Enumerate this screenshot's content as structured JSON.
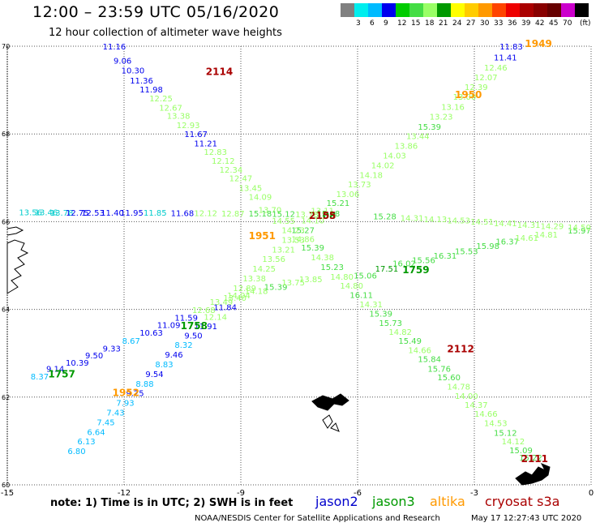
{
  "header": {
    "title": "12:00 – 23:59 UTC 05/16/2020",
    "subtitle": "12 hour collection of altimeter wave heights"
  },
  "colorbar": {
    "unit": "(ft)",
    "colors": [
      "#808080",
      "#00eeee",
      "#00bbff",
      "#0000ee",
      "#00cc00",
      "#44dd44",
      "#99ff66",
      "#009900",
      "#ffff00",
      "#ffcc00",
      "#ff9900",
      "#ff4400",
      "#ee0000",
      "#aa0000",
      "#880000",
      "#660000",
      "#cc00cc",
      "#000000"
    ],
    "labels": [
      "3",
      "6",
      "9",
      "12",
      "15",
      "18",
      "21",
      "24",
      "27",
      "30",
      "33",
      "36",
      "39",
      "42",
      "45",
      "70"
    ]
  },
  "axes": {
    "x_ticks": [
      "-15",
      "-12",
      "-9",
      "-6",
      "-3",
      "0"
    ],
    "y_ticks": [
      "70",
      "68",
      "66",
      "64",
      "62",
      "60"
    ],
    "x_range": [
      -15,
      0
    ],
    "y_range": [
      60,
      70
    ]
  },
  "satellites": {
    "jason2": {
      "name": "jason2",
      "color": "#0000cc"
    },
    "jason3": {
      "name": "jason3",
      "color": "#009900"
    },
    "altika": {
      "name": "altika",
      "color": "#ff9900"
    },
    "cryosat": {
      "name": "cryosat s3a",
      "color": "#aa0000"
    }
  },
  "tracks": [
    {
      "id": "t2114",
      "time": "2114",
      "time_color": "#aa0000",
      "time_at": [
        -9.9,
        69.34
      ],
      "points": [
        [
          -12.55,
          69.93,
          "11.16",
          "#0000ee"
        ],
        [
          -12.27,
          69.6,
          "9.06",
          "#0000ee"
        ],
        [
          -12.07,
          69.38,
          "10.30",
          "#0000ee"
        ],
        [
          -11.85,
          69.15,
          "11.36",
          "#0000ee"
        ],
        [
          -11.6,
          68.95,
          "11.98",
          "#0000ee"
        ],
        [
          -11.35,
          68.74,
          "12.25",
          "#99ff66"
        ],
        [
          -11.1,
          68.53,
          "12.67",
          "#99ff66"
        ],
        [
          -10.9,
          68.35,
          "13.38",
          "#99ff66"
        ],
        [
          -10.65,
          68.13,
          "12.93",
          "#99ff66"
        ],
        [
          -10.45,
          67.93,
          "11.67",
          "#0000ee"
        ],
        [
          -10.2,
          67.72,
          "11.21",
          "#0000ee"
        ],
        [
          -9.95,
          67.52,
          "12.83",
          "#99ff66"
        ],
        [
          -9.75,
          67.32,
          "12.12",
          "#99ff66"
        ],
        [
          -9.55,
          67.12,
          "12.34",
          "#99ff66"
        ],
        [
          -9.3,
          66.92,
          "12.47",
          "#99ff66"
        ],
        [
          -9.05,
          66.7,
          "13.45",
          "#99ff66"
        ],
        [
          -8.8,
          66.5,
          "14.09",
          "#99ff66"
        ],
        [
          -8.55,
          66.2,
          "13.70",
          "#99ff66"
        ],
        [
          -8.2,
          65.95,
          "14.55",
          "#99ff66"
        ],
        [
          -7.95,
          65.74,
          "14.23",
          "#99ff66"
        ],
        [
          -7.7,
          65.54,
          "14.86",
          "#99ff66"
        ],
        [
          -7.45,
          65.34,
          "15.39",
          "#44dd44"
        ],
        [
          -7.2,
          65.12,
          "14.38",
          "#99ff66"
        ],
        [
          -6.95,
          64.9,
          "15.23",
          "#44dd44"
        ],
        [
          -6.7,
          64.68,
          "14.80",
          "#99ff66"
        ],
        [
          -6.45,
          64.47,
          "14.80",
          "#99ff66"
        ],
        [
          -6.2,
          64.26,
          "16.11",
          "#44dd44"
        ],
        [
          -5.95,
          64.05,
          "14.31",
          "#99ff66"
        ],
        [
          -5.7,
          63.84,
          "15.39",
          "#44dd44"
        ],
        [
          -5.45,
          63.62,
          "15.73",
          "#44dd44"
        ],
        [
          -5.2,
          63.42,
          "14.82",
          "#99ff66"
        ],
        [
          -4.95,
          63.22,
          "15.49",
          "#44dd44"
        ],
        [
          -4.7,
          63.0,
          "14.66",
          "#99ff66"
        ],
        [
          -4.45,
          62.8,
          "15.84",
          "#44dd44"
        ],
        [
          -4.2,
          62.58,
          "15.76",
          "#44dd44"
        ],
        [
          -3.95,
          62.38,
          "15.60",
          "#44dd44"
        ],
        [
          -3.7,
          62.17,
          "14.78",
          "#99ff66"
        ],
        [
          -3.5,
          61.96,
          "14.00",
          "#99ff66"
        ],
        [
          -3.25,
          61.76,
          "14.37",
          "#99ff66"
        ],
        [
          -3.0,
          61.55,
          "14.66",
          "#99ff66"
        ],
        [
          -2.75,
          61.34,
          "14.53",
          "#99ff66"
        ],
        [
          -2.5,
          61.12,
          "15.12",
          "#44dd44"
        ],
        [
          -2.3,
          60.92,
          "14.12",
          "#99ff66"
        ],
        [
          -2.1,
          60.72,
          "15.09",
          "#44dd44"
        ],
        [
          -1.85,
          60.55,
          "15.22",
          "#44dd44"
        ]
      ]
    },
    {
      "id": "t1950",
      "time": "1950",
      "time_color": "#ff9900",
      "time_at": [
        -3.5,
        68.82
      ],
      "points": [
        [
          -2.35,
          69.93,
          "11.83",
          "#0000ee"
        ],
        [
          -2.5,
          69.68,
          "11.41",
          "#0000ee"
        ],
        [
          -2.75,
          69.45,
          "12.46",
          "#99ff66"
        ],
        [
          -3.0,
          69.22,
          "12.07",
          "#99ff66"
        ],
        [
          -3.25,
          69.0,
          "12.39",
          "#99ff66"
        ],
        [
          -3.55,
          68.78,
          "13.00",
          "#99ff66"
        ],
        [
          -3.85,
          68.55,
          "13.16",
          "#99ff66"
        ],
        [
          -4.15,
          68.33,
          "13.23",
          "#99ff66"
        ],
        [
          -4.45,
          68.1,
          "15.39",
          "#44dd44"
        ],
        [
          -4.75,
          67.88,
          "13.44",
          "#99ff66"
        ],
        [
          -5.05,
          67.66,
          "13.86",
          "#99ff66"
        ],
        [
          -5.35,
          67.44,
          "14.03",
          "#99ff66"
        ],
        [
          -5.65,
          67.22,
          "14.02",
          "#99ff66"
        ],
        [
          -5.95,
          67.0,
          "14.18",
          "#99ff66"
        ],
        [
          -6.25,
          66.78,
          "13.73",
          "#99ff66"
        ],
        [
          -6.55,
          66.56,
          "13.06",
          "#99ff66"
        ],
        [
          -6.8,
          66.36,
          "15.21",
          "#44dd44"
        ],
        [
          -7.05,
          66.12,
          "15.18",
          "#44dd44"
        ]
      ]
    },
    {
      "id": "t1951",
      "time": "1951",
      "time_color": "#ff9900",
      "time_at": [
        -8.8,
        65.6
      ],
      "points": [
        [
          -7.2,
          66.18,
          "13.11",
          "#99ff66"
        ],
        [
          -7.45,
          65.96,
          "14.10",
          "#99ff66"
        ],
        [
          -7.7,
          65.74,
          "15.27",
          "#44dd44"
        ],
        [
          -7.95,
          65.52,
          "13.53",
          "#99ff66"
        ],
        [
          -8.2,
          65.3,
          "13.21",
          "#99ff66"
        ],
        [
          -8.45,
          65.08,
          "13.56",
          "#99ff66"
        ],
        [
          -8.7,
          64.86,
          "14.25",
          "#99ff66"
        ],
        [
          -8.95,
          64.64,
          "13.38",
          "#99ff66"
        ],
        [
          -9.2,
          64.42,
          "12.89",
          "#99ff66"
        ],
        [
          -9.45,
          64.2,
          "13.40",
          "#99ff66"
        ],
        [
          -9.7,
          63.98,
          "11.84",
          "#0000ee"
        ],
        [
          -9.95,
          63.76,
          "12.14",
          "#99ff66"
        ],
        [
          -10.2,
          63.55,
          "11.91",
          "#0000ee"
        ],
        [
          -10.45,
          63.34,
          "9.50",
          "#0000ee"
        ],
        [
          -10.7,
          63.12,
          "8.32",
          "#00bbff"
        ],
        [
          -10.95,
          62.9,
          "9.46",
          "#0000ee"
        ],
        [
          -11.2,
          62.68,
          "8.83",
          "#00bbff"
        ],
        [
          -11.45,
          62.46,
          "9.54",
          "#0000ee"
        ],
        [
          -11.7,
          62.24,
          "8.88",
          "#00bbff"
        ],
        [
          -11.95,
          62.02,
          "9.25",
          "#0000ee"
        ],
        [
          -12.2,
          61.8,
          "7.93",
          "#00bbff"
        ],
        [
          -12.45,
          61.58,
          "7.43",
          "#00bbff"
        ],
        [
          -12.7,
          61.36,
          "7.45",
          "#00bbff"
        ],
        [
          -12.95,
          61.14,
          "6.64",
          "#00bbff"
        ],
        [
          -13.2,
          60.92,
          "6.13",
          "#00bbff"
        ],
        [
          -13.45,
          60.7,
          "6.80",
          "#00bbff"
        ]
      ]
    },
    {
      "id": "t1952",
      "time": "1952",
      "time_color": "#ff9900",
      "time_at": [
        -12.3,
        62.02
      ],
      "points": []
    },
    {
      "id": "t1757",
      "time": "1757",
      "time_color": "#009900",
      "time_at": [
        -13.95,
        62.45
      ],
      "points": [
        [
          -14.4,
          62.4,
          "8.37",
          "#00bbff"
        ],
        [
          -14.0,
          62.58,
          "9.14",
          "#0000ee"
        ],
        [
          -13.5,
          62.72,
          "10.39",
          "#0000ee"
        ],
        [
          -13.0,
          62.88,
          "9.50",
          "#0000ee"
        ],
        [
          -12.55,
          63.04,
          "9.33",
          "#0000ee"
        ],
        [
          -12.05,
          63.22,
          "8.67",
          "#00bbff"
        ],
        [
          -11.6,
          63.4,
          "10.63",
          "#0000ee"
        ],
        [
          -11.15,
          63.58,
          "11.09",
          "#0000ee"
        ],
        [
          -10.7,
          63.74,
          "11.59",
          "#0000ee"
        ],
        [
          -10.25,
          63.92,
          "12.68",
          "#99ff66"
        ],
        [
          -9.8,
          64.1,
          "13.49",
          "#99ff66"
        ],
        [
          -9.35,
          64.25,
          "14.04",
          "#99ff66"
        ],
        [
          -8.9,
          64.35,
          "14.18",
          "#99ff66"
        ],
        [
          -8.4,
          64.45,
          "15.39",
          "#44dd44"
        ],
        [
          -7.95,
          64.55,
          "13.75",
          "#99ff66"
        ],
        [
          -7.5,
          64.62,
          "13.85",
          "#99ff66"
        ]
      ]
    },
    {
      "id": "t1758",
      "time": "1758",
      "time_color": "#009900",
      "time_at": [
        -10.55,
        63.55
      ],
      "points": []
    },
    {
      "id": "t1759",
      "time": "1759",
      "time_color": "#009900",
      "time_at": [
        -4.85,
        64.82
      ],
      "points": [
        [
          -6.1,
          64.7,
          "15.06",
          "#44dd44"
        ],
        [
          -5.55,
          64.86,
          "17.51",
          "#009900"
        ],
        [
          -5.1,
          64.98,
          "16.02",
          "#44dd44"
        ],
        [
          -4.6,
          65.06,
          "15.56",
          "#44dd44"
        ],
        [
          -4.05,
          65.16,
          "16.31",
          "#44dd44"
        ],
        [
          -3.5,
          65.26,
          "15.53",
          "#44dd44"
        ],
        [
          -2.95,
          65.38,
          "15.98",
          "#44dd44"
        ],
        [
          -2.45,
          65.48,
          "16.37",
          "#44dd44"
        ],
        [
          -1.95,
          65.56,
          "14.61",
          "#99ff66"
        ],
        [
          -1.45,
          65.64,
          "14.81",
          "#99ff66"
        ],
        [
          -0.6,
          65.73,
          "15.97",
          "#44dd44"
        ]
      ]
    },
    {
      "id": "t2112",
      "time": "2112",
      "time_color": "#aa0000",
      "time_at": [
        -3.7,
        63.02
      ],
      "points": []
    },
    {
      "id": "t2111",
      "time": "2111",
      "time_color": "#aa0000",
      "time_at": [
        -1.8,
        60.52
      ],
      "points": []
    },
    {
      "id": "t1949",
      "time": "1949",
      "time_color": "#ff9900",
      "time_at": [
        -1.7,
        69.98
      ],
      "points": []
    },
    {
      "id": "t2108",
      "time": "2108",
      "time_color": "#009900",
      "time_at": [
        -7.25,
        66.06
      ],
      "points": []
    },
    {
      "id": "t2155",
      "time": "2155",
      "time_color": "#aa0000",
      "time_at": [
        -7.25,
        66.06
      ],
      "points": []
    },
    {
      "id": "t_west",
      "time": "",
      "time_color": "#009900",
      "time_at": [
        -14.7,
        66.1
      ],
      "points": [
        [
          -14.7,
          66.15,
          "13.56",
          "#00cccc"
        ],
        [
          -14.3,
          66.15,
          "13.46",
          "#00cccc"
        ],
        [
          -13.9,
          66.14,
          "13.78",
          "#00cccc"
        ],
        [
          -13.5,
          66.14,
          "12.75",
          "#0000ee"
        ],
        [
          -13.1,
          66.14,
          "12.53",
          "#0000ee"
        ],
        [
          -12.6,
          66.14,
          "11.40",
          "#0000ee"
        ],
        [
          -12.1,
          66.14,
          "11.95",
          "#0000ee"
        ],
        [
          -11.5,
          66.14,
          "11.85",
          "#00cccc"
        ],
        [
          -10.8,
          66.13,
          "11.68",
          "#0000ee"
        ],
        [
          -10.2,
          66.13,
          "12.12",
          "#99ff66"
        ],
        [
          -9.5,
          66.12,
          "12.87",
          "#99ff66"
        ],
        [
          -8.8,
          66.12,
          "15.18",
          "#44dd44"
        ],
        [
          -8.2,
          66.11,
          "15.12",
          "#44dd44"
        ],
        [
          -7.6,
          66.1,
          "13.78",
          "#99ff66"
        ]
      ]
    },
    {
      "id": "t_east",
      "time": "",
      "time_color": "#99ff66",
      "time_at": [
        -5.5,
        66.05
      ],
      "points": [
        [
          -5.6,
          66.05,
          "15.28",
          "#44dd44"
        ],
        [
          -4.9,
          66.02,
          "14.31",
          "#99ff66"
        ],
        [
          -4.3,
          65.99,
          "14.13",
          "#99ff66"
        ],
        [
          -3.7,
          65.96,
          "14.53",
          "#99ff66"
        ],
        [
          -3.1,
          65.93,
          "14.51",
          "#99ff66"
        ],
        [
          -2.5,
          65.9,
          "14.41",
          "#99ff66"
        ],
        [
          -1.9,
          65.86,
          "14.31",
          "#99ff66"
        ],
        [
          -1.3,
          65.83,
          "14.29",
          "#99ff66"
        ],
        [
          -0.6,
          65.8,
          "14.50",
          "#99ff66"
        ]
      ]
    }
  ],
  "footer": {
    "note": "note: 1) Time is in UTC; 2) SWH is in feet",
    "credit": "NOAA/NESDIS Center for Satellite Applications and Research",
    "stamp": "May 17 12:27:43 UTC 2020"
  }
}
